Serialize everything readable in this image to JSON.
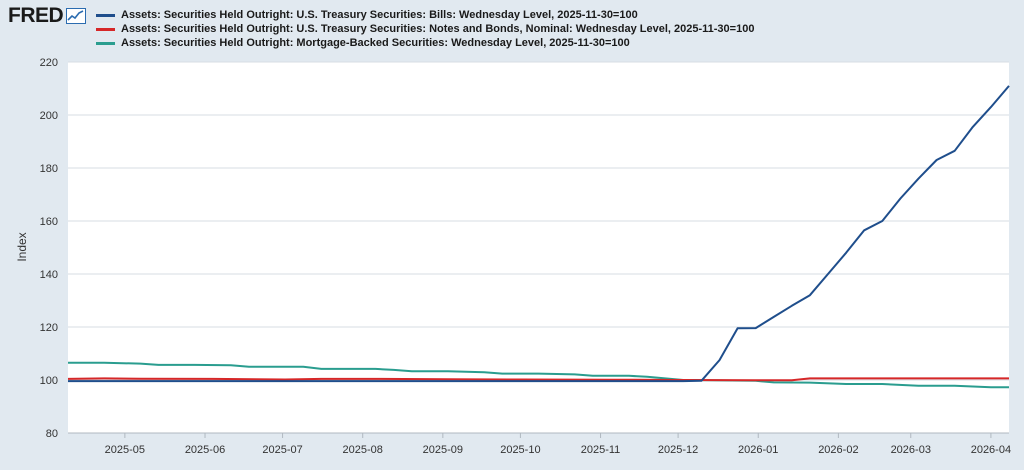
{
  "header": {
    "logo_text": "FRED",
    "logo_icon": "line-chart-icon"
  },
  "chart_data": {
    "type": "line",
    "title": "",
    "xlabel": "",
    "ylabel": "Index",
    "ylim": [
      80,
      220
    ],
    "xlim": [
      "2025-04-09",
      "2026-04-08"
    ],
    "yticks": [
      "80",
      "100",
      "120",
      "140",
      "160",
      "180",
      "200",
      "220"
    ],
    "xticks": [
      {
        "date": "2025-05-01",
        "label": "2025-05"
      },
      {
        "date": "2025-06-01",
        "label": "2025-06"
      },
      {
        "date": "2025-07-01",
        "label": "2025-07"
      },
      {
        "date": "2025-08-01",
        "label": "2025-08"
      },
      {
        "date": "2025-09-01",
        "label": "2025-09"
      },
      {
        "date": "2025-10-01",
        "label": "2025-10"
      },
      {
        "date": "2025-11-01",
        "label": "2025-11"
      },
      {
        "date": "2025-12-01",
        "label": "2025-12"
      },
      {
        "date": "2026-01-01",
        "label": "2026-01"
      },
      {
        "date": "2026-02-01",
        "label": "2026-02"
      },
      {
        "date": "2026-03-01",
        "label": "2026-03"
      },
      {
        "date": "2026-04-01",
        "label": "2026-04"
      }
    ],
    "grid": true,
    "legend_position": "top",
    "series": [
      {
        "name": "Assets: Securities Held Outright: U.S. Treasury Securities: Bills: Wednesday Level, 2025-11-30=100",
        "color": "#1f4e8c",
        "points": [
          [
            "2025-04-09",
            99.6
          ],
          [
            "2025-05-07",
            99.6
          ],
          [
            "2025-06-04",
            99.6
          ],
          [
            "2025-07-02",
            99.6
          ],
          [
            "2025-08-06",
            99.6
          ],
          [
            "2025-09-03",
            99.6
          ],
          [
            "2025-10-01",
            99.6
          ],
          [
            "2025-11-05",
            99.6
          ],
          [
            "2025-12-03",
            99.6
          ],
          [
            "2025-12-10",
            99.7
          ],
          [
            "2025-12-17",
            107.5
          ],
          [
            "2025-12-24",
            119.5
          ],
          [
            "2025-12-31",
            119.6
          ],
          [
            "2026-01-07",
            123.8
          ],
          [
            "2026-01-14",
            128.0
          ],
          [
            "2026-01-21",
            132.0
          ],
          [
            "2026-01-28",
            140.0
          ],
          [
            "2026-02-04",
            148.0
          ],
          [
            "2026-02-11",
            156.5
          ],
          [
            "2026-02-18",
            160.0
          ],
          [
            "2026-02-25",
            168.5
          ],
          [
            "2026-03-04",
            176.0
          ],
          [
            "2026-03-11",
            183.0
          ],
          [
            "2026-03-18",
            186.5
          ],
          [
            "2026-03-25",
            195.5
          ],
          [
            "2026-04-01",
            203.0
          ],
          [
            "2026-04-08",
            211.0
          ]
        ]
      },
      {
        "name": "Assets: Securities Held Outright: U.S. Treasury Securities: Notes and Bonds, Nominal: Wednesday Level, 2025-11-30=100",
        "color": "#d62728",
        "points": [
          [
            "2025-04-09",
            100.4
          ],
          [
            "2025-04-23",
            100.6
          ],
          [
            "2025-05-07",
            100.5
          ],
          [
            "2025-06-04",
            100.4
          ],
          [
            "2025-07-02",
            100.2
          ],
          [
            "2025-07-16",
            100.4
          ],
          [
            "2025-08-06",
            100.4
          ],
          [
            "2025-09-03",
            100.3
          ],
          [
            "2025-10-01",
            100.2
          ],
          [
            "2025-11-05",
            100.1
          ],
          [
            "2025-12-03",
            100.0
          ],
          [
            "2025-12-31",
            99.9
          ],
          [
            "2026-01-14",
            99.9
          ],
          [
            "2026-01-21",
            100.6
          ],
          [
            "2026-02-18",
            100.6
          ],
          [
            "2026-03-18",
            100.6
          ],
          [
            "2026-04-08",
            100.6
          ]
        ]
      },
      {
        "name": "Assets: Securities Held Outright: Mortgage-Backed Securities: Wednesday Level, 2025-11-30=100",
        "color": "#2a9d8f",
        "points": [
          [
            "2025-04-09",
            106.5
          ],
          [
            "2025-04-23",
            106.5
          ],
          [
            "2025-05-07",
            106.2
          ],
          [
            "2025-05-14",
            105.7
          ],
          [
            "2025-05-28",
            105.7
          ],
          [
            "2025-06-11",
            105.6
          ],
          [
            "2025-06-18",
            105.0
          ],
          [
            "2025-07-09",
            105.0
          ],
          [
            "2025-07-16",
            104.2
          ],
          [
            "2025-08-06",
            104.2
          ],
          [
            "2025-08-13",
            103.8
          ],
          [
            "2025-08-20",
            103.3
          ],
          [
            "2025-09-03",
            103.3
          ],
          [
            "2025-09-17",
            102.9
          ],
          [
            "2025-09-24",
            102.4
          ],
          [
            "2025-10-08",
            102.4
          ],
          [
            "2025-10-22",
            102.1
          ],
          [
            "2025-10-29",
            101.6
          ],
          [
            "2025-11-12",
            101.6
          ],
          [
            "2025-11-19",
            101.2
          ],
          [
            "2025-11-26",
            100.6
          ],
          [
            "2025-12-03",
            100.0
          ],
          [
            "2025-12-31",
            99.7
          ],
          [
            "2026-01-07",
            99.1
          ],
          [
            "2026-01-21",
            99.0
          ],
          [
            "2026-02-04",
            98.5
          ],
          [
            "2026-02-18",
            98.5
          ],
          [
            "2026-03-04",
            97.8
          ],
          [
            "2026-03-18",
            97.8
          ],
          [
            "2026-04-01",
            97.3
          ],
          [
            "2026-04-08",
            97.3
          ]
        ]
      }
    ]
  }
}
